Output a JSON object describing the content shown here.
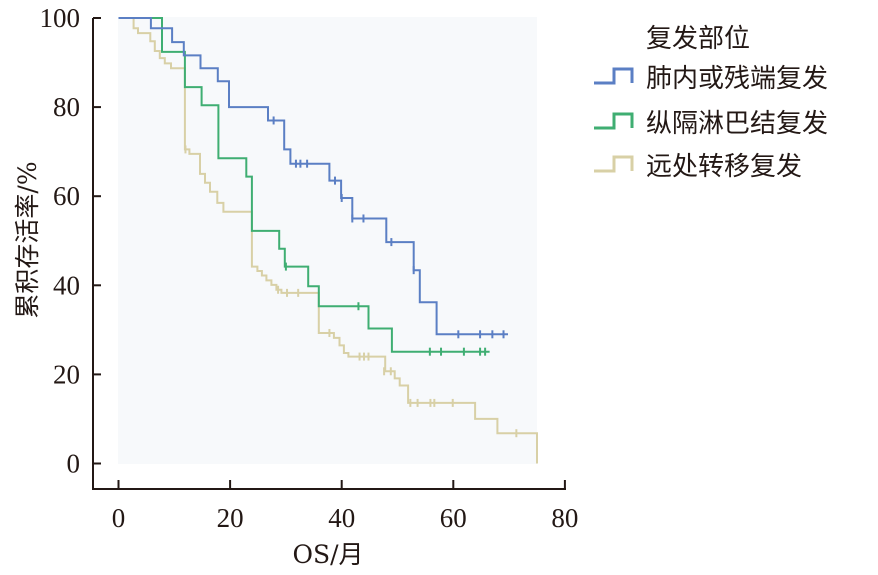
{
  "chart_data": {
    "type": "line",
    "subtype": "kaplan-meier-step",
    "title": "",
    "xlabel": "OS/月",
    "ylabel": "累积存活率/%",
    "xlim": [
      0,
      80
    ],
    "ylim": [
      0,
      100
    ],
    "x_ticks": [
      "0",
      "20",
      "40",
      "60",
      "80"
    ],
    "y_ticks": [
      "0",
      "20",
      "40",
      "60",
      "80",
      "100"
    ],
    "grid": false,
    "plot_background": "#f7f9fb",
    "legend": {
      "title": "复发部位",
      "position": "right-top",
      "entries": [
        "肺内或残端复发",
        "纵隔淋巴结复发",
        "远处转移复发"
      ]
    },
    "series": [
      {
        "name": "肺内或残端复发",
        "color": "#5b7fc4",
        "steps": [
          [
            0,
            100
          ],
          [
            5.8,
            97.7
          ],
          [
            9.6,
            94.6
          ],
          [
            11.7,
            91.6
          ],
          [
            14.7,
            88.7
          ],
          [
            17.8,
            85.8
          ],
          [
            19.8,
            80
          ],
          [
            26.8,
            77
          ],
          [
            29.7,
            70.5
          ],
          [
            30.8,
            67.3
          ],
          [
            37.8,
            63.5
          ],
          [
            39.9,
            59.6
          ],
          [
            41.9,
            55
          ],
          [
            48,
            49.7
          ],
          [
            52.9,
            43.4
          ],
          [
            54,
            36.2
          ],
          [
            57,
            29
          ],
          [
            69.8,
            29
          ]
        ],
        "censored": [
          [
            27.8,
            77
          ],
          [
            31.8,
            67.3
          ],
          [
            32.6,
            67.3
          ],
          [
            33.8,
            67.3
          ],
          [
            38.8,
            63.5
          ],
          [
            40,
            59.6
          ],
          [
            41.9,
            55
          ],
          [
            43.9,
            55
          ],
          [
            48.9,
            49.7
          ],
          [
            52.9,
            43.4
          ],
          [
            60.9,
            29
          ],
          [
            64.8,
            29
          ],
          [
            67,
            29
          ],
          [
            69,
            29
          ]
        ]
      },
      {
        "name": "纵隔淋巴结复发",
        "color": "#3fae72",
        "steps": [
          [
            0,
            100
          ],
          [
            7.8,
            92.4
          ],
          [
            11.9,
            84.5
          ],
          [
            14.9,
            80.4
          ],
          [
            17.9,
            68.5
          ],
          [
            22.9,
            64.4
          ],
          [
            23.9,
            52.2
          ],
          [
            28.8,
            48.2
          ],
          [
            29.8,
            44.2
          ],
          [
            34,
            39.8
          ],
          [
            35.9,
            35.3
          ],
          [
            44.8,
            30.3
          ],
          [
            49,
            25.1
          ],
          [
            66.5,
            25.1
          ]
        ],
        "censored": [
          [
            30,
            44.2
          ],
          [
            43,
            35.3
          ],
          [
            55.8,
            25.1
          ],
          [
            57.8,
            25.1
          ],
          [
            61.9,
            25.1
          ],
          [
            64.8,
            25.1
          ],
          [
            65.7,
            25.1
          ]
        ]
      },
      {
        "name": "远处转移复发",
        "color": "#d8d0a6",
        "steps": [
          [
            0,
            100
          ],
          [
            2.7,
            97.7
          ],
          [
            3.5,
            96.6
          ],
          [
            5.7,
            94.8
          ],
          [
            6.5,
            92.6
          ],
          [
            7.4,
            91
          ],
          [
            8.3,
            89.8
          ],
          [
            9.4,
            88.7
          ],
          [
            11.9,
            87.8
          ],
          [
            11.9,
            70.5
          ],
          [
            12.7,
            69.5
          ],
          [
            14.6,
            65
          ],
          [
            15.5,
            63
          ],
          [
            16.4,
            61
          ],
          [
            17.7,
            58.5
          ],
          [
            18.8,
            56.5
          ],
          [
            23.9,
            44.2
          ],
          [
            24.9,
            43.2
          ],
          [
            25.7,
            42.2
          ],
          [
            26.5,
            41.1
          ],
          [
            27.4,
            40.1
          ],
          [
            28.3,
            39
          ],
          [
            29.2,
            38.3
          ],
          [
            35.9,
            29.3
          ],
          [
            38.6,
            28.2
          ],
          [
            39.6,
            26.5
          ],
          [
            40.4,
            24.8
          ],
          [
            41.2,
            24
          ],
          [
            47.8,
            20.7
          ],
          [
            49.5,
            19.1
          ],
          [
            50.4,
            17.5
          ],
          [
            51.9,
            13.6
          ],
          [
            63.9,
            10
          ],
          [
            67.9,
            6.8
          ],
          [
            75,
            0
          ]
        ],
        "censored": [
          [
            12,
            70.5
          ],
          [
            28.6,
            39
          ],
          [
            30.2,
            38.3
          ],
          [
            32.2,
            38.3
          ],
          [
            37.8,
            29.3
          ],
          [
            43.2,
            24
          ],
          [
            44,
            24
          ],
          [
            44.8,
            24
          ],
          [
            47.6,
            20.7
          ],
          [
            48.8,
            20.7
          ],
          [
            52.3,
            13.6
          ],
          [
            53.6,
            13.6
          ],
          [
            55.9,
            13.6
          ],
          [
            56.6,
            13.6
          ],
          [
            59.9,
            13.6
          ],
          [
            71.3,
            6.8
          ]
        ]
      }
    ]
  }
}
